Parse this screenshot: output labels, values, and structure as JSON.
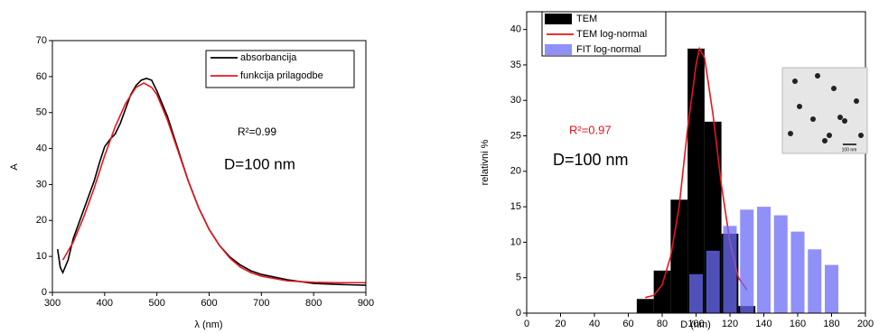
{
  "chart_data": [
    {
      "type": "line",
      "x_label": "λ (nm)",
      "y_label": "A",
      "xlim": [
        300,
        900
      ],
      "ylim": [
        0,
        70
      ],
      "xticks": [
        300,
        400,
        500,
        600,
        700,
        800,
        900
      ],
      "yticks": [
        0,
        10,
        20,
        30,
        40,
        50,
        60,
        70
      ],
      "annotations": [
        "R²=0.99",
        "D=100 nm"
      ],
      "series": [
        {
          "name": "absorbancija",
          "color": "#000000",
          "x": [
            310,
            315,
            320,
            330,
            340,
            350,
            360,
            370,
            380,
            390,
            400,
            410,
            420,
            430,
            440,
            450,
            460,
            470,
            480,
            490,
            500,
            520,
            540,
            560,
            580,
            600,
            620,
            640,
            660,
            680,
            700,
            750,
            800,
            850,
            900
          ],
          "values": [
            12,
            7,
            5.5,
            9,
            15,
            19,
            23,
            27,
            31,
            36,
            40.5,
            42.5,
            44,
            47,
            51,
            55,
            57.5,
            59,
            59.5,
            59,
            56,
            49,
            40,
            31,
            23.5,
            17.5,
            13,
            9.8,
            7.6,
            6,
            5,
            3.5,
            2.5,
            2.2,
            2
          ]
        },
        {
          "name": "funkcija prilagodbe",
          "color": "#e8141c",
          "x": [
            320,
            340,
            360,
            380,
            400,
            420,
            440,
            460,
            475,
            490,
            500,
            520,
            540,
            560,
            580,
            600,
            620,
            640,
            660,
            680,
            700,
            750,
            800,
            850,
            900
          ],
          "values": [
            9,
            14,
            21,
            29,
            38,
            46,
            52.5,
            57,
            58.2,
            57,
            55,
            48,
            39.5,
            31,
            23.5,
            17.5,
            13,
            9.5,
            7,
            5.5,
            4.5,
            3.2,
            2.8,
            2.7,
            2.7
          ]
        }
      ]
    },
    {
      "type": "bar",
      "x_label": "D (nm)",
      "y_label": "relativni %",
      "xlim": [
        0,
        200
      ],
      "ylim": [
        0,
        42.5
      ],
      "xticks": [
        0,
        20,
        40,
        60,
        80,
        100,
        120,
        140,
        160,
        180,
        200
      ],
      "yticks": [
        0,
        5,
        10,
        15,
        20,
        25,
        30,
        35,
        40
      ],
      "annotations": [
        "R²=0.97",
        "D=100 nm"
      ],
      "inset_label": "100 nm",
      "x": [
        70,
        80,
        90,
        100,
        110,
        120,
        130,
        140,
        150,
        160,
        170,
        180
      ],
      "series": [
        {
          "name": "TEM",
          "type": "bar",
          "color": "#000000",
          "values": [
            2,
            6,
            16,
            37.3,
            27,
            11.2,
            1,
            null,
            null,
            null,
            null,
            null
          ]
        },
        {
          "name": "TEM log-normal",
          "type": "line",
          "color": "#e8141c",
          "x": [
            70,
            75,
            80,
            85,
            90,
            95,
            100,
            102,
            105,
            110,
            115,
            120,
            125,
            130
          ],
          "values": [
            2.2,
            2.5,
            4,
            8,
            15,
            26,
            35,
            37.3,
            36,
            28,
            18,
            10,
            5,
            3.3
          ]
        },
        {
          "name": "FIT log-normal",
          "type": "bar",
          "color": "#6b6bf7",
          "values": [
            null,
            null,
            null,
            5.5,
            8.8,
            12.3,
            14.6,
            15,
            13.8,
            11.5,
            9,
            6.8
          ]
        }
      ]
    }
  ]
}
